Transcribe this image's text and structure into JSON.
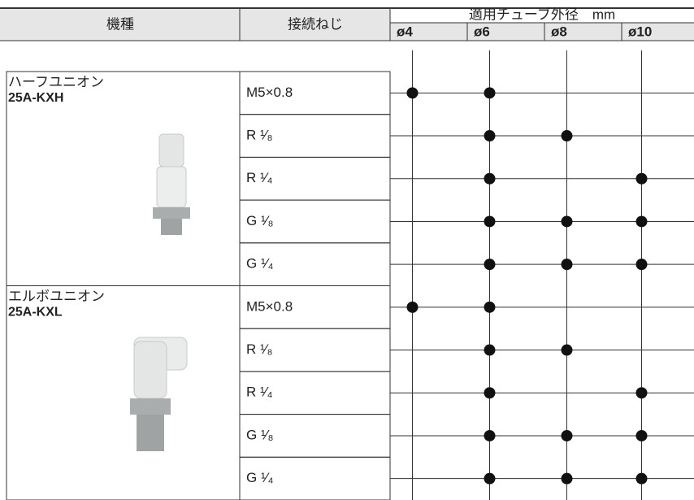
{
  "header": {
    "model": "機種",
    "thread": "接続ねじ",
    "tube_od": "適用チューブ外径　mm",
    "sizes": [
      "ø4",
      "ø6",
      "ø8",
      "ø10"
    ]
  },
  "models": [
    {
      "name": "ハーフユニオン",
      "code": "25A-KXH",
      "rows": [
        {
          "thread": "M5×0.8",
          "available": [
            true,
            true,
            false,
            false
          ]
        },
        {
          "thread": "R ¹⁄₈",
          "available": [
            false,
            true,
            true,
            false
          ]
        },
        {
          "thread": "R ¹⁄₄",
          "available": [
            false,
            true,
            false,
            true
          ]
        },
        {
          "thread": "G ¹⁄₈",
          "available": [
            false,
            true,
            true,
            true
          ]
        },
        {
          "thread": "G ¹⁄₄",
          "available": [
            false,
            true,
            true,
            true
          ]
        }
      ]
    },
    {
      "name": "エルボユニオン",
      "code": "25A-KXL",
      "rows": [
        {
          "thread": "M5×0.8",
          "available": [
            true,
            true,
            false,
            false
          ]
        },
        {
          "thread": "R ¹⁄₈",
          "available": [
            false,
            true,
            true,
            false
          ]
        },
        {
          "thread": "R ¹⁄₄",
          "available": [
            false,
            true,
            false,
            true
          ]
        },
        {
          "thread": "G ¹⁄₈",
          "available": [
            false,
            true,
            true,
            true
          ]
        },
        {
          "thread": "G ¹⁄₄",
          "available": [
            false,
            true,
            true,
            true
          ]
        }
      ]
    }
  ]
}
